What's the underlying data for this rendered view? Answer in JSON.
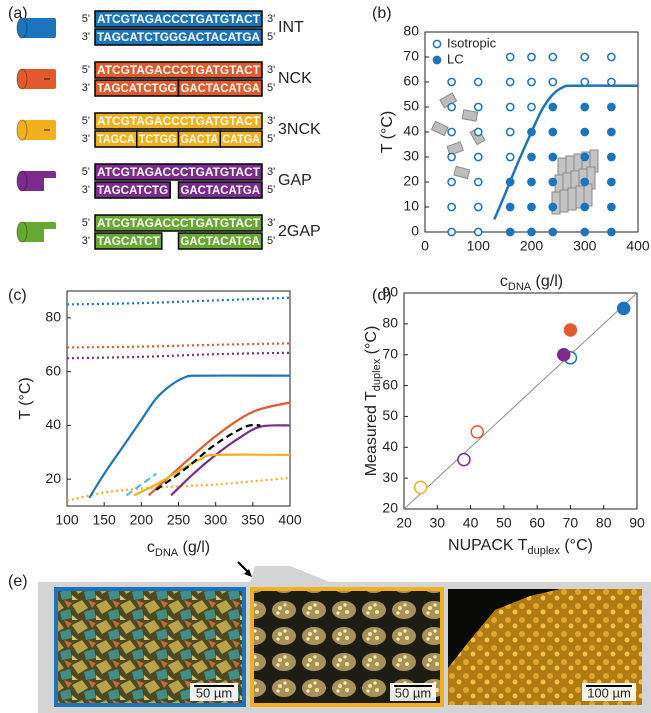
{
  "dna": {
    "panel_label": "(a)",
    "five_end": "5'",
    "three_end": "3'",
    "top_strand": "ATCGTAGACCCTGATGTACT",
    "constructs": [
      {
        "name": "INT",
        "color": "#1c75bc",
        "bottom_segments": [
          "TAGCATCTGGGACTACATGA"
        ]
      },
      {
        "name": "NCK",
        "color": "#e15a2b",
        "bottom_segments": [
          "TAGCATCTGG",
          "GACTACATGA"
        ]
      },
      {
        "name": "3NCK",
        "color": "#f2b01e",
        "bottom_segments": [
          "TAGCA",
          "TCTGG",
          "GACTA",
          "CATGA"
        ]
      },
      {
        "name": "GAP",
        "color": "#7a2b8c",
        "bottom_segments": [
          "TAGCATCTG",
          "GACTACATGA"
        ]
      },
      {
        "name": "2GAP",
        "color": "#67a832",
        "bottom_segments": [
          "TAGCATCT",
          "GACTACATGA"
        ]
      }
    ]
  },
  "chart_data": [
    {
      "type": "scatter",
      "panel_label": "(b)",
      "y_label": "T (°C)",
      "x_label": "c",
      "x_label_sub": "DNA",
      "x_label_unit": " (g/l)",
      "xlim": [
        0,
        400
      ],
      "xticks": [
        0,
        100,
        200,
        300,
        400
      ],
      "ylim": [
        0,
        80
      ],
      "yticks": [
        0,
        10,
        20,
        30,
        40,
        50,
        60,
        70,
        80
      ],
      "series": [
        {
          "name": "Isotropic",
          "color": "#1c75bc",
          "marker": "open",
          "x": [
            50,
            50,
            50,
            50,
            50,
            50,
            50,
            100,
            100,
            100,
            100,
            100,
            100,
            100,
            160,
            160,
            160,
            160,
            160,
            200,
            200,
            200,
            240,
            240,
            300,
            300,
            350,
            350
          ],
          "values": [
            0,
            10,
            20,
            30,
            40,
            50,
            60,
            0,
            10,
            20,
            30,
            40,
            50,
            60,
            30,
            40,
            50,
            60,
            70,
            50,
            60,
            70,
            60,
            70,
            60,
            70,
            60,
            70
          ]
        },
        {
          "name": "LC",
          "color": "#1c75bc",
          "marker": "filled",
          "x": [
            160,
            160,
            160,
            200,
            200,
            200,
            200,
            200,
            240,
            240,
            240,
            240,
            240,
            240,
            300,
            300,
            300,
            300,
            300,
            300,
            350,
            350,
            350,
            350,
            350,
            350
          ],
          "values": [
            0,
            10,
            20,
            0,
            10,
            20,
            30,
            40,
            0,
            10,
            20,
            30,
            40,
            50,
            0,
            10,
            20,
            30,
            40,
            50,
            0,
            10,
            20,
            30,
            40,
            50
          ]
        }
      ],
      "boundary": {
        "color": "#1c75bc",
        "x": [
          130,
          150,
          175,
          200,
          220,
          240,
          260,
          280,
          400
        ],
        "values": [
          5,
          15,
          28,
          40,
          49,
          55,
          58,
          58.5,
          58.5
        ]
      }
    },
    {
      "type": "line",
      "panel_label": "(c)",
      "y_label": "T (°C)",
      "x_label": "c",
      "x_label_sub": "DNA",
      "x_label_unit": " (g/l)",
      "xlim": [
        100,
        400
      ],
      "xticks": [
        100,
        150,
        200,
        250,
        300,
        350,
        400
      ],
      "ylim": [
        10,
        90
      ],
      "yticks": [
        20,
        40,
        60,
        80
      ],
      "series": [
        {
          "color": "#1c75bc",
          "style": "dotted",
          "x": [
            100,
            200,
            300,
            400
          ],
          "values": [
            85,
            85.5,
            86.5,
            87.5
          ]
        },
        {
          "color": "#e15a2b",
          "style": "dotted",
          "x": [
            100,
            200,
            300,
            400
          ],
          "values": [
            69,
            69.3,
            70,
            70.5
          ]
        },
        {
          "color": "#7a2b8c",
          "style": "dotted",
          "x": [
            100,
            200,
            300,
            400
          ],
          "values": [
            65,
            65.5,
            66.5,
            67
          ]
        },
        {
          "color": "#f2b01e",
          "style": "dotted",
          "x": [
            100,
            150,
            200,
            250,
            300,
            350,
            400
          ],
          "values": [
            12,
            15,
            16.5,
            17.3,
            18,
            19.2,
            20.5
          ]
        },
        {
          "color": "#1c75bc",
          "style": "solid",
          "x": [
            130,
            150,
            175,
            200,
            220,
            240,
            260,
            280,
            400
          ],
          "values": [
            13,
            22,
            32,
            42,
            50,
            55,
            58,
            58.5,
            58.5
          ]
        },
        {
          "color": "#e15a2b",
          "style": "solid",
          "x": [
            210,
            250,
            300,
            350,
            400
          ],
          "values": [
            14,
            24,
            36,
            45,
            48.5
          ]
        },
        {
          "color": "#7a2b8c",
          "style": "solid",
          "x": [
            240,
            270,
            300,
            330,
            360,
            400
          ],
          "values": [
            14,
            22,
            29,
            35,
            39.5,
            40
          ]
        },
        {
          "color": "#f2b01e",
          "style": "solid",
          "x": [
            190,
            220,
            250,
            280,
            300,
            400
          ],
          "values": [
            14,
            18,
            23,
            27.5,
            29,
            29
          ]
        },
        {
          "color": "#000000",
          "style": "dashed",
          "x": [
            220,
            260,
            300,
            340,
            360
          ],
          "values": [
            16,
            24,
            33,
            39.5,
            40
          ]
        },
        {
          "color": "#5db6e8",
          "style": "dashed",
          "x": [
            180,
            200,
            220
          ],
          "values": [
            14,
            18,
            22
          ]
        }
      ]
    },
    {
      "type": "scatter",
      "panel_label": "(d)",
      "y_label": "Measured T",
      "y_label_sub": "duplex",
      "y_label_unit": " (°C)",
      "x_label": "NUPACK T",
      "x_label_sub": "duplex",
      "x_label_unit": " (°C)",
      "xlim": [
        20,
        90
      ],
      "xticks": [
        20,
        30,
        40,
        50,
        60,
        70,
        80,
        90
      ],
      "ylim": [
        20,
        90
      ],
      "yticks": [
        20,
        30,
        40,
        50,
        60,
        70,
        80,
        90
      ],
      "series": [
        {
          "marker": "open",
          "colors": [
            "#f2b01e",
            "#e15a2b",
            "#7a2b8c",
            "#1c75bc"
          ],
          "x": [
            25,
            42,
            38,
            70
          ],
          "values": [
            27,
            45,
            36,
            69
          ]
        },
        {
          "marker": "filled",
          "colors": [
            "#7a2b8c",
            "#e15a2b",
            "#1c75bc"
          ],
          "x": [
            68,
            70,
            86
          ],
          "values": [
            70,
            78,
            85
          ]
        }
      ],
      "reference_line": {
        "color": "#8c8c8c",
        "x": [
          20,
          90
        ],
        "values": [
          20,
          90
        ]
      }
    }
  ],
  "micrographs": {
    "panel_label": "(e)",
    "scale_bars": [
      "50 µm",
      "50 µm",
      "100 µm"
    ]
  }
}
